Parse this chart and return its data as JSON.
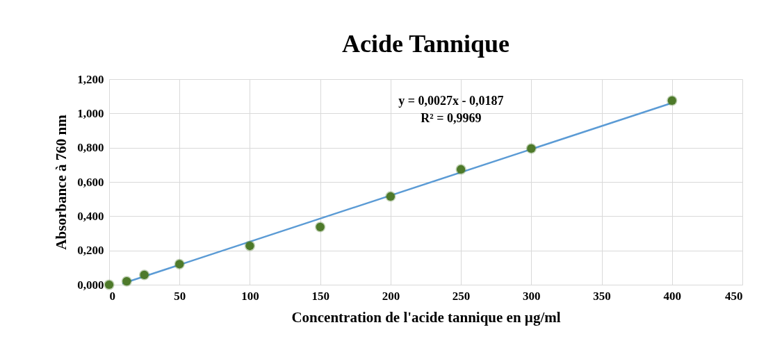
{
  "chart_data": {
    "type": "scatter",
    "title": "Acide Tannique",
    "xlabel": "Concentration de l'acide tannique en µg/ml",
    "ylabel": "Absorbance à 760 nm",
    "series": [
      {
        "marker": "circle",
        "color": "#4e7a2a",
        "x": [
          0,
          12.5,
          25,
          50,
          100,
          150,
          200,
          250,
          300,
          400
        ],
        "values": [
          0.0,
          0.02,
          0.057,
          0.12,
          0.227,
          0.337,
          0.515,
          0.673,
          0.795,
          1.075
        ]
      },
      {
        "type": "line",
        "color": "#5b9bd5",
        "x": [
          10,
          400
        ],
        "values": [
          0.008,
          1.061
        ]
      }
    ],
    "xlim": [
      0,
      450
    ],
    "xticks": [
      0,
      50,
      100,
      150,
      200,
      250,
      300,
      350,
      400,
      450
    ],
    "ylim": [
      0,
      1.2
    ],
    "yticks": [
      {
        "value": 0,
        "label": "0,000"
      },
      {
        "value": 0.2,
        "label": "0,200"
      },
      {
        "value": 0.4,
        "label": "0,400"
      },
      {
        "value": 0.6,
        "label": "0,600"
      },
      {
        "value": 0.8,
        "label": "0,800"
      },
      {
        "value": 1.0,
        "label": "1,000"
      },
      {
        "value": 1.2,
        "label": "1,200"
      }
    ],
    "grid": true,
    "line_style": "solid",
    "annotations": [
      "y = 0,0027x - 0,0187",
      "R² = 0,9969"
    ]
  }
}
